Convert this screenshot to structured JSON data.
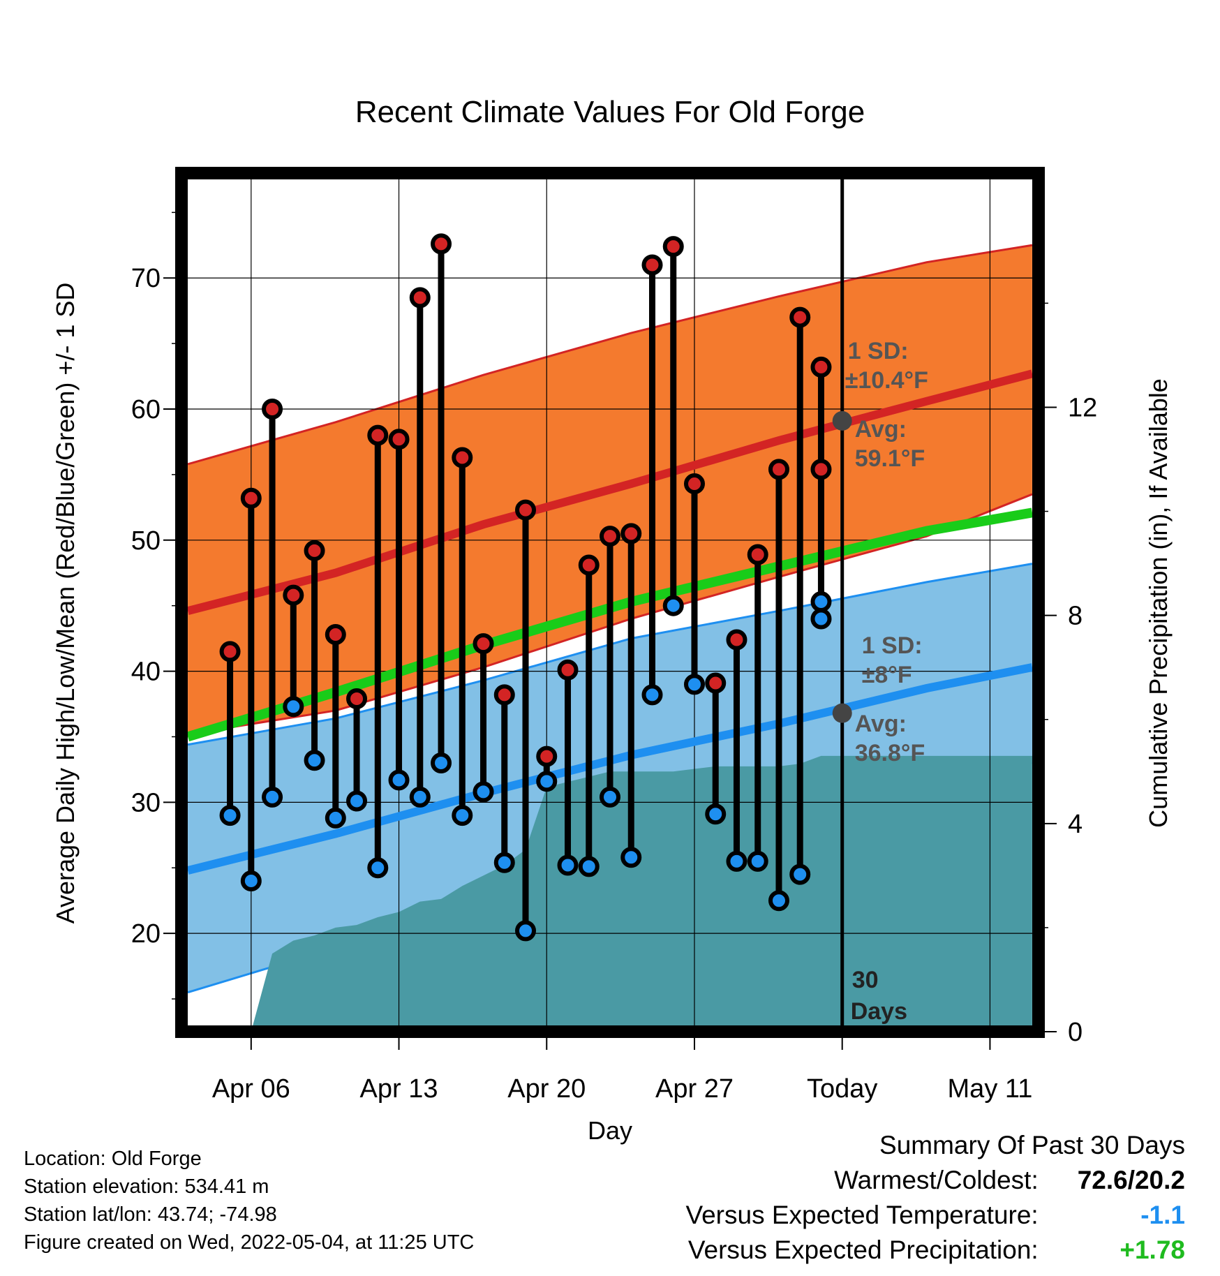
{
  "chart_data": {
    "type": "line",
    "title": "Recent Climate Values For Old Forge",
    "xlabel": "Day",
    "ylabel": "Average Daily High/Low/Mean (Red/Blue/Green) +/- 1 SD",
    "y2label": "Cumulative Precipitation (in), If Available",
    "x_tick_labels": [
      "Apr 06",
      "Apr 13",
      "Apr 20",
      "Apr 27",
      "Today",
      "May 11"
    ],
    "x_tick_days": [
      6,
      13,
      20,
      27,
      34,
      41
    ],
    "x_range_days": [
      2.7,
      43.3
    ],
    "ylim": [
      12.5,
      78
    ],
    "y_ticks": [
      20,
      30,
      40,
      50,
      60,
      70
    ],
    "y2lim": [
      0,
      16.5
    ],
    "y2_ticks": [
      0,
      4,
      8,
      12
    ],
    "grid": true,
    "today_day": 34,
    "daily": {
      "days": [
        5,
        6,
        7,
        8,
        9,
        10,
        11,
        12,
        13,
        14,
        15,
        16,
        17,
        18,
        19,
        20,
        21,
        22,
        23,
        24,
        25,
        26,
        27,
        28,
        29,
        30,
        31,
        32,
        33
      ],
      "high": [
        41.5,
        53.2,
        60.0,
        45.8,
        49.2,
        42.8,
        37.9,
        58.0,
        57.7,
        68.5,
        72.6,
        56.3,
        42.1,
        38.2,
        52.3,
        33.5,
        40.1,
        48.1,
        50.3,
        50.5,
        71.0,
        72.4,
        54.3,
        39.1,
        42.4,
        48.9,
        55.4,
        67.0,
        55.4
      ],
      "low": [
        29.0,
        24.0,
        30.4,
        37.3,
        33.2,
        28.8,
        30.1,
        25.0,
        31.7,
        30.4,
        33.0,
        29.0,
        30.8,
        25.4,
        20.2,
        31.6,
        25.2,
        25.1,
        30.4,
        25.8,
        38.2,
        45.0,
        39.0,
        29.1,
        25.5,
        25.5,
        22.5,
        24.5,
        45.3
      ]
    },
    "extra_day": {
      "day": 33,
      "high": 63.2,
      "low": 44.0
    },
    "normals": {
      "days": [
        3,
        10,
        17,
        24,
        31,
        38,
        43
      ],
      "high_mean": [
        44.6,
        47.5,
        51.2,
        54.3,
        57.6,
        60.6,
        62.7
      ],
      "high_upper": [
        55.8,
        59.0,
        62.6,
        65.8,
        68.6,
        71.2,
        72.5
      ],
      "high_lower": [
        35.2,
        37.0,
        40.3,
        44.0,
        47.2,
        50.3,
        53.5
      ],
      "low_mean": [
        24.8,
        27.6,
        30.7,
        33.6,
        36.0,
        38.7,
        40.3
      ],
      "low_upper": [
        34.4,
        36.4,
        39.3,
        42.5,
        44.6,
        46.8,
        48.2
      ],
      "low_lower": [
        15.5,
        18.9,
        22.8,
        26.3,
        28.7,
        31.5,
        33.0
      ],
      "mean": [
        35.0,
        38.4,
        42.0,
        45.3,
        48.0,
        50.7,
        52.1
      ]
    },
    "precip": {
      "days": [
        6,
        7,
        8,
        9,
        10,
        11,
        12,
        13,
        14,
        15,
        16,
        17,
        18,
        19,
        20,
        21,
        22,
        23,
        24,
        25,
        26,
        27,
        28,
        29,
        30,
        31,
        32,
        33,
        34,
        41,
        43
      ],
      "cumulative": [
        0.0,
        1.5,
        1.75,
        1.85,
        2.0,
        2.05,
        2.2,
        2.3,
        2.5,
        2.55,
        2.8,
        3.0,
        3.2,
        3.5,
        4.7,
        4.8,
        4.9,
        5.0,
        5.0,
        5.0,
        5.0,
        5.05,
        5.1,
        5.1,
        5.1,
        5.1,
        5.15,
        5.3,
        5.3,
        5.3,
        5.3
      ]
    },
    "high_annotation": {
      "sd_label": "1 SD:",
      "sd_value": "±10.4°F",
      "avg_label": "Avg:",
      "avg_value": "59.1°F",
      "avg": 59.1
    },
    "low_annotation": {
      "sd_label": "1 SD:",
      "sd_value": "±8°F",
      "avg_label": "Avg:",
      "avg_value": "36.8°F",
      "avg": 36.8
    },
    "days_label": [
      "30",
      "Days"
    ],
    "colors": {
      "high_band": "#f47a2e",
      "high_line": "#d32424",
      "low_band": "#82c0e6",
      "low_line": "#1e8ff0",
      "mean_line": "#19cc19",
      "precip": "#4a9aa4",
      "high_dot": "#d32424",
      "low_dot": "#1e8ff0",
      "avg_dot": "#444444",
      "plus": "#1fbb1f",
      "minus": "#1e8ff0"
    }
  },
  "footer": {
    "location": "Location: Old Forge",
    "elevation": "Station elevation: 534.41 m",
    "latlon": "Station lat/lon: 43.74; -74.98",
    "created": "Figure created on Wed, 2022-05-04, at 11:25 UTC"
  },
  "summary": {
    "heading": "Summary Of Past 30 Days",
    "warmest_coldest_label": "Warmest/Coldest:",
    "warmest_coldest_value": "72.6/20.2",
    "temp_label": "Versus Expected Temperature:",
    "temp_value": "-1.1",
    "precip_label": "Versus Expected Precipitation:",
    "precip_value": "+1.78"
  }
}
